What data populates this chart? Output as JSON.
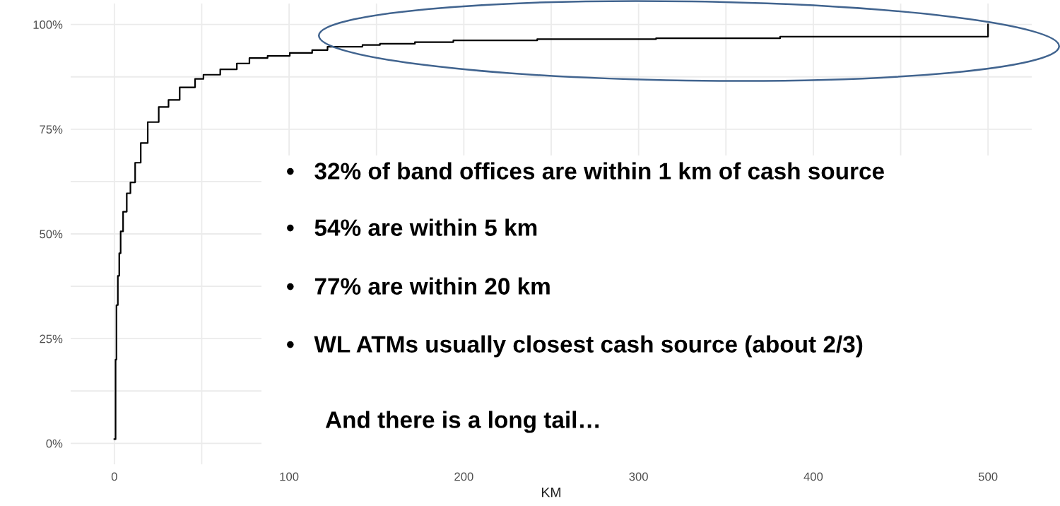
{
  "chart_data": {
    "type": "step",
    "xlabel": "KM",
    "x": [
      0,
      0.7,
      1.2,
      2.0,
      2.8,
      3.6,
      5.0,
      7.1,
      9.2,
      11.9,
      15.1,
      19.1,
      25.4,
      31,
      37.4,
      46.2,
      51,
      60.6,
      70.1,
      77.3,
      87.7,
      100.4,
      113.2,
      122,
      142,
      152,
      172,
      194,
      242,
      310,
      381,
      500
    ],
    "series": [
      {
        "color": "#000000",
        "values": [
          1,
          20,
          33,
          40,
          45.4,
          50.6,
          55.3,
          59.7,
          62.3,
          67,
          71.7,
          76.7,
          80.3,
          82,
          85,
          87,
          88,
          89.3,
          90.7,
          92,
          92.5,
          93.2,
          93.9,
          94.7,
          95.1,
          95.4,
          95.8,
          96.2,
          96.5,
          96.7,
          97.1,
          100
        ]
      }
    ],
    "xlim": [
      -25,
      525
    ],
    "ylim": [
      -5,
      105
    ],
    "xticks": [
      0,
      {
        "value": 50,
        "label": null
      },
      100,
      {
        "value": 150,
        "label": null
      },
      200,
      {
        "value": 250,
        "label": null
      },
      300,
      {
        "value": 350,
        "label": null
      },
      400,
      {
        "value": 450,
        "label": null
      },
      500
    ],
    "yticks": [
      {
        "value": 0,
        "label": "0%"
      },
      {
        "value": 12.5,
        "label": null
      },
      {
        "value": 25,
        "label": "25%"
      },
      {
        "value": 37.5,
        "label": null
      },
      {
        "value": 50,
        "label": "50%"
      },
      {
        "value": 62.5,
        "label": null
      },
      {
        "value": 75,
        "label": "75%"
      },
      {
        "value": 87.5,
        "label": null
      },
      {
        "value": 100,
        "label": "100%"
      }
    ],
    "grid": true,
    "annotations": [
      "•   32% of band offices are within 1 km of cash source",
      "•   54% are within 5 km",
      "•   77% are within 20 km",
      "•   WL ATMs usually closest cash source (about 2/3)",
      "And there is a long tail…"
    ]
  }
}
